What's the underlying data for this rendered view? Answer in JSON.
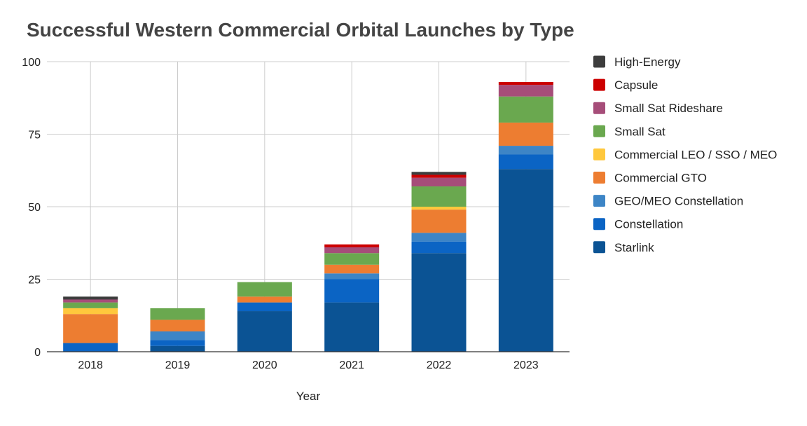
{
  "chart_data": {
    "type": "bar",
    "stacked": true,
    "title": "Successful Western Commercial Orbital Launches by Type",
    "xlabel": "Year",
    "ylabel": "",
    "categories": [
      "2018",
      "2019",
      "2020",
      "2021",
      "2022",
      "2023"
    ],
    "ylim": [
      0,
      100
    ],
    "yticks": [
      0,
      25,
      50,
      75,
      100
    ],
    "grid": true,
    "legend_position": "right",
    "series": [
      {
        "name": "Starlink",
        "color": "#0b5394",
        "values": [
          0,
          2,
          14,
          17,
          34,
          63
        ]
      },
      {
        "name": "Constellation",
        "color": "#0b64c4",
        "values": [
          3,
          2,
          3,
          8,
          4,
          5
        ]
      },
      {
        "name": "GEO/MEO Constellation",
        "color": "#3d85c6",
        "values": [
          0,
          3,
          0,
          2,
          3,
          3
        ]
      },
      {
        "name": "Commercial GTO",
        "color": "#ed7d31",
        "values": [
          10,
          4,
          2,
          3,
          8,
          8
        ]
      },
      {
        "name": "Commercial LEO / SSO / MEO",
        "color": "#ffc83d",
        "values": [
          2,
          0,
          0,
          0,
          1,
          0
        ]
      },
      {
        "name": "Small Sat",
        "color": "#6aa84f",
        "values": [
          2,
          4,
          5,
          4,
          7,
          9
        ]
      },
      {
        "name": "Small Sat Rideshare",
        "color": "#a64d79",
        "values": [
          1,
          0,
          0,
          2,
          3,
          4
        ]
      },
      {
        "name": "Capsule",
        "color": "#cc0000",
        "values": [
          0,
          0,
          0,
          1,
          1,
          1
        ]
      },
      {
        "name": "High-Energy",
        "color": "#3d3d3d",
        "values": [
          1,
          0,
          0,
          0,
          1,
          0
        ]
      }
    ]
  }
}
